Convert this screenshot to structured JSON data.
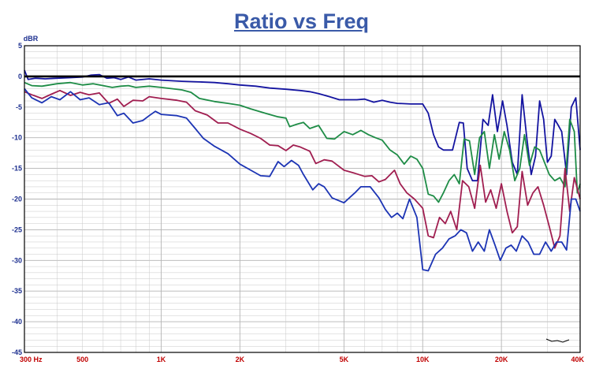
{
  "colors": {
    "title": "#3a5aa8",
    "axis_text_y": "#1c2f8f",
    "axis_text_x": "#c00000",
    "grid": "#c8c8c8",
    "grid_major": "#b4b4b4",
    "zero_line": "#000000",
    "background": "#ffffff"
  },
  "chart_data": {
    "type": "line",
    "title": "Ratio vs Freq",
    "ylabel": "dBR",
    "xscale": "log",
    "xlim": [
      300,
      40000
    ],
    "ylim": [
      -45,
      5
    ],
    "grid": true,
    "reference_line_y": 0,
    "y_ticks": [
      {
        "value": 5,
        "label": "5"
      },
      {
        "value": 0,
        "label": "0"
      },
      {
        "value": -5,
        "label": "-5"
      },
      {
        "value": -10,
        "label": "-10"
      },
      {
        "value": -15,
        "label": "-15"
      },
      {
        "value": -20,
        "label": "-20"
      },
      {
        "value": -25,
        "label": "-25"
      },
      {
        "value": -30,
        "label": "-30"
      },
      {
        "value": -35,
        "label": "-35"
      },
      {
        "value": -40,
        "label": "-40"
      },
      {
        "value": -45,
        "label": "-45"
      }
    ],
    "x_ticks": [
      {
        "value": 300,
        "label": "300 Hz"
      },
      {
        "value": 500,
        "label": "500"
      },
      {
        "value": 1000,
        "label": "1K"
      },
      {
        "value": 2000,
        "label": "2K"
      },
      {
        "value": 5000,
        "label": "5K"
      },
      {
        "value": 10000,
        "label": "10K"
      },
      {
        "value": 20000,
        "label": "20K"
      },
      {
        "value": 40000,
        "label": "40K"
      }
    ],
    "series": [
      {
        "color": "#1414a0",
        "points": [
          [
            300,
            1
          ],
          [
            310,
            -0.5
          ],
          [
            330,
            -0.3
          ],
          [
            360,
            -0.4
          ],
          [
            400,
            -0.3
          ],
          [
            450,
            -0.2
          ],
          [
            500,
            -0.1
          ],
          [
            540,
            0.2
          ],
          [
            580,
            0.3
          ],
          [
            620,
            -0.3
          ],
          [
            660,
            -0.2
          ],
          [
            700,
            -0.5
          ],
          [
            750,
            -0.1
          ],
          [
            800,
            -0.6
          ],
          [
            900,
            -0.4
          ],
          [
            1000,
            -0.6
          ],
          [
            1200,
            -0.8
          ],
          [
            1400,
            -0.9
          ],
          [
            1600,
            -1.0
          ],
          [
            1800,
            -1.2
          ],
          [
            2000,
            -1.4
          ],
          [
            2300,
            -1.6
          ],
          [
            2600,
            -1.9
          ],
          [
            3000,
            -2.1
          ],
          [
            3400,
            -2.3
          ],
          [
            3700,
            -2.5
          ],
          [
            4000,
            -2.8
          ],
          [
            4400,
            -3.3
          ],
          [
            4800,
            -3.8
          ],
          [
            5200,
            -3.8
          ],
          [
            5600,
            -3.8
          ],
          [
            6000,
            -3.7
          ],
          [
            6500,
            -4.2
          ],
          [
            7000,
            -3.9
          ],
          [
            7500,
            -4.2
          ],
          [
            8000,
            -4.4
          ],
          [
            9000,
            -4.5
          ],
          [
            10000,
            -4.5
          ],
          [
            10500,
            -6
          ],
          [
            11000,
            -9.5
          ],
          [
            11500,
            -11.5
          ],
          [
            12000,
            -12
          ],
          [
            13000,
            -12
          ],
          [
            13800,
            -7.5
          ],
          [
            14300,
            -7.6
          ],
          [
            14800,
            -15
          ],
          [
            15500,
            -17
          ],
          [
            16200,
            -17
          ],
          [
            17000,
            -7
          ],
          [
            17800,
            -8
          ],
          [
            18500,
            -3
          ],
          [
            19300,
            -9
          ],
          [
            20200,
            -4
          ],
          [
            21000,
            -8
          ],
          [
            22000,
            -14
          ],
          [
            23000,
            -16
          ],
          [
            24000,
            -3
          ],
          [
            25000,
            -10
          ],
          [
            26000,
            -16
          ],
          [
            27000,
            -13
          ],
          [
            28000,
            -4
          ],
          [
            29000,
            -7
          ],
          [
            30000,
            -14
          ],
          [
            31000,
            -13
          ],
          [
            32000,
            -7
          ],
          [
            33000,
            -8
          ],
          [
            34000,
            -9
          ],
          [
            35500,
            -16
          ],
          [
            37000,
            -5
          ],
          [
            38500,
            -3.5
          ],
          [
            40000,
            -12
          ]
        ]
      },
      {
        "color": "#1e8c46",
        "points": [
          [
            300,
            -1
          ],
          [
            320,
            -1.5
          ],
          [
            350,
            -1.6
          ],
          [
            400,
            -1.2
          ],
          [
            450,
            -1.0
          ],
          [
            500,
            -1.4
          ],
          [
            550,
            -1.2
          ],
          [
            600,
            -1.5
          ],
          [
            650,
            -1.8
          ],
          [
            700,
            -1.6
          ],
          [
            750,
            -1.5
          ],
          [
            800,
            -1.8
          ],
          [
            900,
            -1.6
          ],
          [
            1000,
            -1.8
          ],
          [
            1100,
            -2.0
          ],
          [
            1200,
            -2.2
          ],
          [
            1300,
            -2.6
          ],
          [
            1400,
            -3.6
          ],
          [
            1600,
            -4.1
          ],
          [
            1800,
            -4.4
          ],
          [
            2000,
            -4.7
          ],
          [
            2200,
            -5.3
          ],
          [
            2500,
            -6.0
          ],
          [
            2800,
            -6.6
          ],
          [
            3000,
            -6.8
          ],
          [
            3100,
            -8.2
          ],
          [
            3300,
            -7.8
          ],
          [
            3500,
            -7.5
          ],
          [
            3700,
            -8.5
          ],
          [
            4000,
            -8.0
          ],
          [
            4300,
            -10.1
          ],
          [
            4600,
            -10.2
          ],
          [
            5000,
            -9.0
          ],
          [
            5400,
            -9.5
          ],
          [
            5800,
            -8.8
          ],
          [
            6200,
            -9.5
          ],
          [
            6600,
            -10.0
          ],
          [
            7000,
            -10.4
          ],
          [
            7500,
            -12.0
          ],
          [
            8000,
            -12.8
          ],
          [
            8500,
            -14.3
          ],
          [
            9000,
            -13.0
          ],
          [
            9500,
            -13.5
          ],
          [
            10000,
            -15.0
          ],
          [
            10500,
            -19.2
          ],
          [
            11000,
            -19.5
          ],
          [
            11500,
            -20.5
          ],
          [
            12000,
            -19.0
          ],
          [
            12600,
            -17.0
          ],
          [
            13200,
            -16.0
          ],
          [
            13800,
            -17.5
          ],
          [
            14400,
            -10.2
          ],
          [
            15100,
            -10.5
          ],
          [
            15800,
            -16.0
          ],
          [
            16500,
            -10.0
          ],
          [
            17200,
            -9.0
          ],
          [
            18000,
            -15.0
          ],
          [
            18800,
            -9.5
          ],
          [
            19600,
            -13.5
          ],
          [
            20500,
            -9.0
          ],
          [
            21500,
            -12.0
          ],
          [
            22500,
            -17.0
          ],
          [
            23500,
            -15.0
          ],
          [
            24500,
            -9.5
          ],
          [
            25600,
            -14.5
          ],
          [
            26800,
            -11.5
          ],
          [
            28000,
            -12.0
          ],
          [
            29200,
            -14.0
          ],
          [
            30500,
            -16.0
          ],
          [
            32000,
            -17.0
          ],
          [
            33500,
            -16.5
          ],
          [
            35000,
            -18.0
          ],
          [
            36500,
            -7.0
          ],
          [
            38000,
            -9.0
          ],
          [
            39000,
            -19.0
          ],
          [
            40000,
            -17.5
          ]
        ]
      },
      {
        "color": "#a01e50",
        "points": [
          [
            300,
            -2.5
          ],
          [
            320,
            -3.0
          ],
          [
            350,
            -3.6
          ],
          [
            380,
            -2.9
          ],
          [
            410,
            -2.3
          ],
          [
            450,
            -3.1
          ],
          [
            490,
            -2.6
          ],
          [
            530,
            -3.0
          ],
          [
            580,
            -2.7
          ],
          [
            630,
            -4.4
          ],
          [
            680,
            -3.7
          ],
          [
            720,
            -4.9
          ],
          [
            780,
            -3.9
          ],
          [
            850,
            -4.0
          ],
          [
            900,
            -3.3
          ],
          [
            1000,
            -3.6
          ],
          [
            1150,
            -3.9
          ],
          [
            1250,
            -4.2
          ],
          [
            1350,
            -5.6
          ],
          [
            1500,
            -6.3
          ],
          [
            1650,
            -7.6
          ],
          [
            1800,
            -7.6
          ],
          [
            2000,
            -8.6
          ],
          [
            2200,
            -9.3
          ],
          [
            2400,
            -10.1
          ],
          [
            2600,
            -11.2
          ],
          [
            2800,
            -11.3
          ],
          [
            3000,
            -12.1
          ],
          [
            3200,
            -11.2
          ],
          [
            3400,
            -11.5
          ],
          [
            3700,
            -12.2
          ],
          [
            3900,
            -14.2
          ],
          [
            4200,
            -13.6
          ],
          [
            4500,
            -13.8
          ],
          [
            5000,
            -15.3
          ],
          [
            5500,
            -15.8
          ],
          [
            6000,
            -16.3
          ],
          [
            6400,
            -16.2
          ],
          [
            6800,
            -17.2
          ],
          [
            7200,
            -16.8
          ],
          [
            7800,
            -15.3
          ],
          [
            8200,
            -17.5
          ],
          [
            8700,
            -19.0
          ],
          [
            9300,
            -20.0
          ],
          [
            10000,
            -21.5
          ],
          [
            10500,
            -26.0
          ],
          [
            11000,
            -26.3
          ],
          [
            11600,
            -23.0
          ],
          [
            12200,
            -24.0
          ],
          [
            12800,
            -22.0
          ],
          [
            13500,
            -25.0
          ],
          [
            14200,
            -17.0
          ],
          [
            15000,
            -18.0
          ],
          [
            15800,
            -21.5
          ],
          [
            16600,
            -14.5
          ],
          [
            17400,
            -20.5
          ],
          [
            18200,
            -18.5
          ],
          [
            19100,
            -21.5
          ],
          [
            20000,
            -17.5
          ],
          [
            21000,
            -22.0
          ],
          [
            22000,
            -25.5
          ],
          [
            23000,
            -24.5
          ],
          [
            24000,
            -15.5
          ],
          [
            25200,
            -21.0
          ],
          [
            26400,
            -19.0
          ],
          [
            27600,
            -18.0
          ],
          [
            29000,
            -21.0
          ],
          [
            30500,
            -24.5
          ],
          [
            32000,
            -28.0
          ],
          [
            33500,
            -26.0
          ],
          [
            35000,
            -15.0
          ],
          [
            36500,
            -22.0
          ],
          [
            38000,
            -16.5
          ],
          [
            40000,
            -20.0
          ]
        ]
      },
      {
        "color": "#1c34b4",
        "points": [
          [
            300,
            -2
          ],
          [
            320,
            -3.5
          ],
          [
            350,
            -4.3
          ],
          [
            380,
            -3.3
          ],
          [
            410,
            -3.8
          ],
          [
            450,
            -2.5
          ],
          [
            490,
            -3.8
          ],
          [
            530,
            -3.5
          ],
          [
            580,
            -4.6
          ],
          [
            630,
            -4.3
          ],
          [
            680,
            -6.4
          ],
          [
            720,
            -6.0
          ],
          [
            780,
            -7.6
          ],
          [
            850,
            -7.2
          ],
          [
            900,
            -6.4
          ],
          [
            950,
            -5.7
          ],
          [
            1000,
            -6.2
          ],
          [
            1150,
            -6.4
          ],
          [
            1250,
            -6.8
          ],
          [
            1350,
            -8.5
          ],
          [
            1450,
            -10.1
          ],
          [
            1600,
            -11.4
          ],
          [
            1800,
            -12.6
          ],
          [
            2000,
            -14.3
          ],
          [
            2200,
            -15.3
          ],
          [
            2400,
            -16.2
          ],
          [
            2600,
            -16.3
          ],
          [
            2800,
            -13.9
          ],
          [
            2950,
            -14.7
          ],
          [
            3150,
            -13.7
          ],
          [
            3350,
            -14.5
          ],
          [
            3500,
            -16.0
          ],
          [
            3800,
            -18.5
          ],
          [
            4000,
            -17.5
          ],
          [
            4200,
            -18.0
          ],
          [
            4500,
            -19.8
          ],
          [
            5000,
            -20.6
          ],
          [
            5500,
            -19.0
          ],
          [
            5800,
            -18.0
          ],
          [
            6300,
            -18.0
          ],
          [
            6800,
            -19.8
          ],
          [
            7200,
            -21.7
          ],
          [
            7600,
            -23.0
          ],
          [
            8000,
            -22.3
          ],
          [
            8400,
            -23.2
          ],
          [
            8900,
            -20.0
          ],
          [
            9500,
            -23.0
          ],
          [
            10000,
            -31.5
          ],
          [
            10500,
            -31.7
          ],
          [
            11200,
            -29.0
          ],
          [
            11900,
            -28.0
          ],
          [
            12600,
            -26.5
          ],
          [
            13300,
            -26.0
          ],
          [
            14000,
            -25.0
          ],
          [
            14700,
            -25.5
          ],
          [
            15500,
            -28.5
          ],
          [
            16300,
            -27.0
          ],
          [
            17200,
            -28.5
          ],
          [
            18000,
            -25.0
          ],
          [
            18900,
            -27.5
          ],
          [
            19800,
            -30.0
          ],
          [
            20800,
            -28.0
          ],
          [
            21800,
            -27.5
          ],
          [
            22800,
            -28.5
          ],
          [
            24000,
            -26.0
          ],
          [
            25300,
            -27.0
          ],
          [
            26600,
            -29.0
          ],
          [
            28000,
            -29.0
          ],
          [
            29500,
            -27.0
          ],
          [
            31000,
            -28.5
          ],
          [
            32500,
            -27.0
          ],
          [
            34000,
            -27.0
          ],
          [
            35500,
            -28.3
          ],
          [
            37000,
            -20.0
          ],
          [
            38500,
            -20.0
          ],
          [
            40000,
            -22.0
          ]
        ]
      }
    ]
  }
}
